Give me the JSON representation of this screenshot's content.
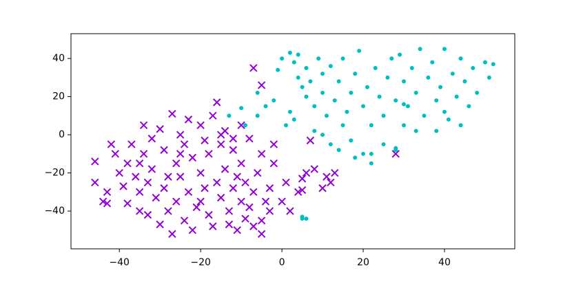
{
  "chart_data": {
    "type": "scatter",
    "xlim": [
      -51.9,
      57.3
    ],
    "ylim": [
      -59.8,
      53
    ],
    "xticks": [
      {
        "value": -40,
        "label": "−40"
      },
      {
        "value": -20,
        "label": "−20"
      },
      0,
      20,
      40
    ],
    "yticks": [
      {
        "value": -40,
        "label": "−40"
      },
      {
        "value": -20,
        "label": "−20"
      },
      0,
      20,
      40
    ],
    "series": [
      {
        "color": "#9400d3",
        "marker": "x",
        "x": [
          -46,
          -46,
          -44,
          -43,
          -43,
          -42,
          -41,
          -40,
          -39,
          -38,
          -38,
          -37,
          -36,
          -35,
          -35,
          -34,
          -34,
          -33,
          -33,
          -32,
          -32,
          -31,
          -30,
          -30,
          -29,
          -29,
          -28,
          -27,
          -27,
          -26,
          -26,
          -25,
          -25,
          -24,
          -24,
          -23,
          -23,
          -22,
          -22,
          -21,
          -20,
          -20,
          -19,
          -19,
          -18,
          -18,
          -17,
          -17,
          -16,
          -16,
          -15,
          -15,
          -14,
          -14,
          -13,
          -13,
          -12,
          -12,
          -11,
          -11,
          -10,
          -10,
          -10,
          -9,
          -9,
          -8,
          -8,
          -7,
          -7,
          -6,
          -5,
          -5,
          -5,
          -4,
          -3,
          -3,
          -2,
          -2,
          0,
          1,
          2,
          4,
          5,
          7,
          6,
          8,
          10,
          11,
          12,
          13,
          5,
          -7,
          -5,
          28,
          -15,
          -25,
          -35,
          -28,
          -20,
          -12
        ],
        "values": [
          -14,
          -25,
          -35,
          -36,
          -30,
          -5,
          -10,
          -20,
          -27,
          -36,
          -15,
          -5,
          -22,
          -40,
          -30,
          5,
          -10,
          -25,
          -42,
          -2,
          -18,
          -33,
          -47,
          3,
          -8,
          -28,
          -40,
          -52,
          11,
          -15,
          -35,
          0,
          -22,
          -45,
          -5,
          8,
          -30,
          -12,
          -50,
          -38,
          5,
          -20,
          -3,
          -28,
          -42,
          -10,
          -48,
          10,
          -25,
          17,
          -33,
          -5,
          2,
          -18,
          -40,
          -47,
          -28,
          -8,
          -22,
          -50,
          -35,
          -15,
          5,
          -44,
          -25,
          -2,
          -38,
          -48,
          -30,
          -20,
          -45,
          -10,
          -52,
          -35,
          -28,
          -40,
          -15,
          -5,
          -35,
          -25,
          -40,
          -30,
          -23,
          -3,
          -20,
          -18,
          -28,
          -22,
          -25,
          -20,
          -29,
          35,
          26,
          -10,
          0,
          -10,
          -15,
          -22,
          -35,
          -2
        ]
      },
      {
        "color": "#00bfbf",
        "marker": "o",
        "x": [
          -6,
          -4,
          -10,
          -13,
          -9,
          -6,
          -2,
          -1,
          0,
          2,
          3,
          4,
          5,
          6,
          2,
          3,
          1,
          4,
          6,
          7,
          8,
          9,
          10,
          10,
          11,
          12,
          13,
          14,
          15,
          15,
          16,
          17,
          18,
          19,
          20,
          20,
          21,
          22,
          23,
          24,
          25,
          26,
          27,
          28,
          29,
          30,
          30,
          31,
          32,
          33,
          34,
          35,
          36,
          37,
          38,
          39,
          40,
          41,
          42,
          43,
          44,
          45,
          46,
          47,
          48,
          50,
          51,
          52,
          12,
          14,
          17,
          18,
          22,
          25,
          28,
          8,
          10,
          5,
          5,
          28,
          38,
          44,
          33,
          40,
          6,
          22,
          30
        ],
        "values": [
          22,
          15,
          14,
          10,
          5,
          10,
          18,
          34,
          40,
          43,
          38,
          30,
          25,
          20,
          12,
          8,
          5,
          42,
          35,
          28,
          15,
          40,
          32,
          22,
          10,
          36,
          18,
          28,
          5,
          40,
          12,
          22,
          32,
          44,
          -10,
          15,
          25,
          5,
          35,
          20,
          10,
          30,
          40,
          18,
          42,
          28,
          5,
          15,
          35,
          22,
          45,
          10,
          30,
          38,
          18,
          25,
          45,
          8,
          32,
          20,
          40,
          28,
          15,
          35,
          22,
          38,
          30,
          37,
          -5,
          -8,
          -3,
          -12,
          -15,
          -5,
          -8,
          2,
          0,
          -43,
          -44,
          -7,
          2,
          5,
          2,
          12,
          -44,
          -10,
          16
        ]
      }
    ]
  }
}
